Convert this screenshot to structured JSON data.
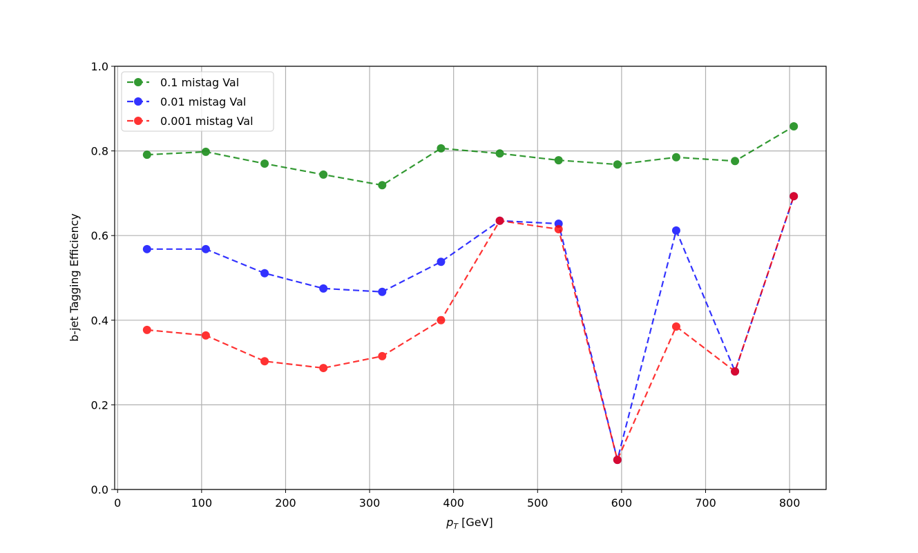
{
  "chart_data": {
    "type": "line",
    "xlabel": {
      "symbol": "p",
      "subscript": "T",
      "unit": "[GeV]"
    },
    "ylabel": "b-jet Tagging Efficiency",
    "x": [
      35,
      105,
      175,
      245,
      315,
      385,
      455,
      525,
      595,
      665,
      735,
      805
    ],
    "series": [
      {
        "name": "0.1 mistag Val",
        "color": "#008000",
        "values": [
          0.791,
          0.798,
          0.77,
          0.744,
          0.719,
          0.806,
          0.794,
          0.778,
          0.768,
          0.785,
          0.776,
          0.858
        ]
      },
      {
        "name": "0.01 mistag Val",
        "color": "#0000ff",
        "values": [
          0.568,
          0.568,
          0.511,
          0.475,
          0.467,
          0.538,
          0.635,
          0.628,
          0.07,
          0.612,
          0.279,
          0.693
        ]
      },
      {
        "name": "0.001 mistag Val",
        "color": "#ff0000",
        "values": [
          0.377,
          0.364,
          0.303,
          0.287,
          0.315,
          0.4,
          0.635,
          0.615,
          0.07,
          0.385,
          0.279,
          0.693
        ]
      }
    ],
    "xlim": [
      -3.5,
      843.5
    ],
    "ylim": [
      0,
      1
    ],
    "xticks": [
      0,
      100,
      200,
      300,
      400,
      500,
      600,
      700,
      800
    ],
    "yticks": [
      {
        "value": 0,
        "label": "0.0"
      },
      0.2,
      0.4,
      0.6,
      0.8,
      {
        "value": 1,
        "label": "1.0"
      }
    ],
    "grid": true,
    "legend": "upper left",
    "line_style": "dashed"
  }
}
